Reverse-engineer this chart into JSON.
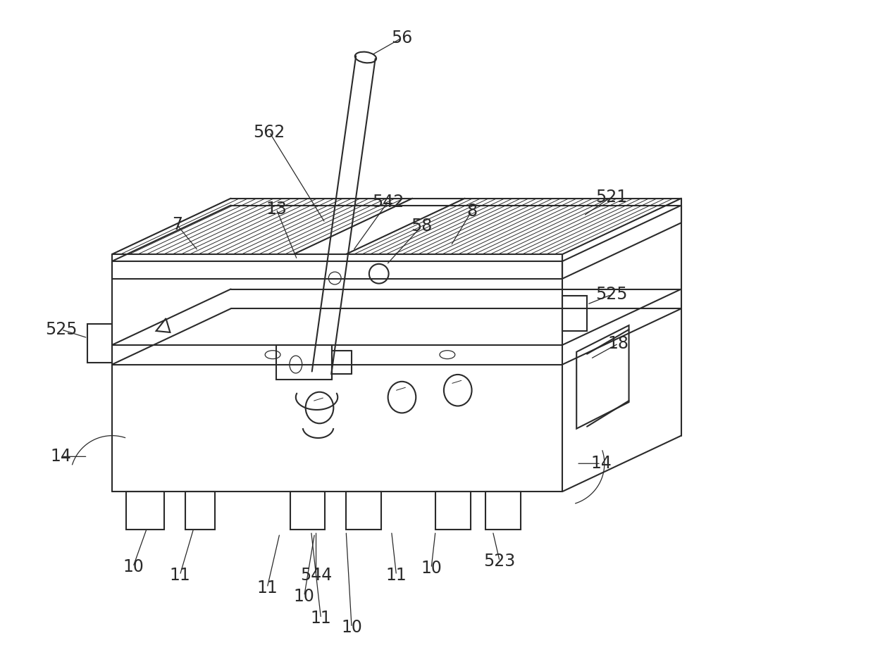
{
  "background_color": "#ffffff",
  "line_color": "#2a2a2a",
  "label_color": "#2a2a2a",
  "fig_width": 12.39,
  "fig_height": 9.33,
  "font_size": 17
}
